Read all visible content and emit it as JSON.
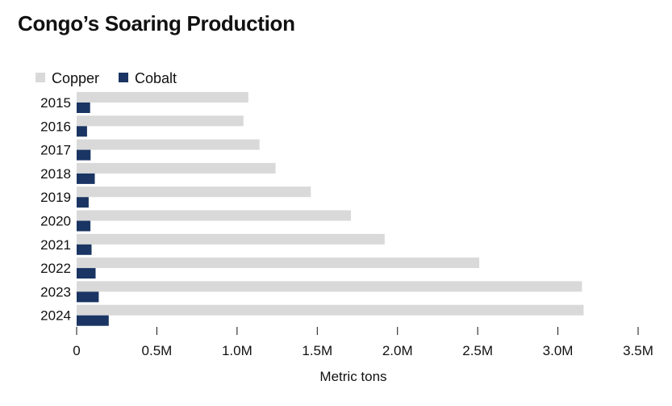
{
  "chart_data": {
    "type": "bar",
    "orientation": "horizontal",
    "title": "Congo’s Soaring Production",
    "xlabel": "Metric tons",
    "ylabel": "",
    "categories": [
      "2015",
      "2016",
      "2017",
      "2018",
      "2019",
      "2020",
      "2021",
      "2022",
      "2023",
      "2024"
    ],
    "series": [
      {
        "name": "Copper",
        "color": "#d9d9d9",
        "values": [
          1070000,
          1040000,
          1140000,
          1240000,
          1460000,
          1710000,
          1920000,
          2510000,
          3150000,
          3160000
        ]
      },
      {
        "name": "Cobalt",
        "color": "#1a3563",
        "values": [
          84000,
          65000,
          87000,
          113000,
          75000,
          86000,
          93000,
          118000,
          138000,
          200000
        ]
      }
    ],
    "xlim": [
      0,
      3500000
    ],
    "xticks": [
      0,
      500000,
      1000000,
      1500000,
      2000000,
      2500000,
      3000000,
      3500000
    ],
    "xtick_labels": [
      "0",
      "0.5M",
      "1.0M",
      "1.5M",
      "2.0M",
      "2.5M",
      "3.0M",
      "3.5M"
    ],
    "legend_position": "top-left",
    "grid": false
  }
}
